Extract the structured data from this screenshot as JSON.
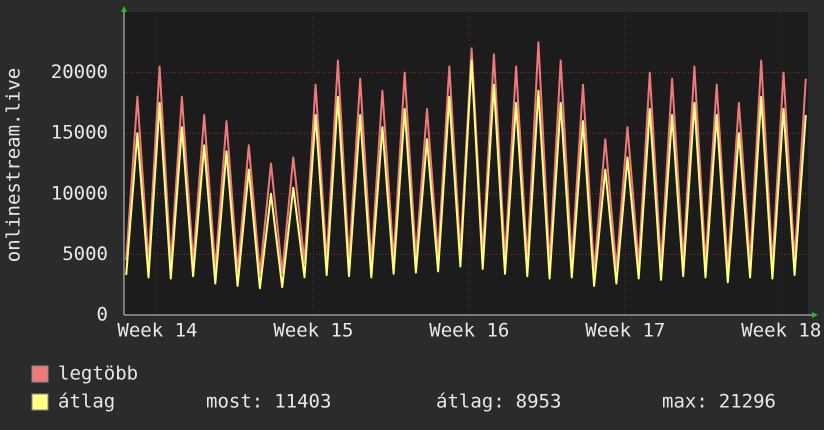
{
  "chart_data": {
    "type": "line",
    "ylabel": "onlinestream.live",
    "x": [
      0.1,
      0.6,
      1.1,
      1.6,
      2.1,
      2.6,
      3.1,
      3.6,
      4.1,
      4.6,
      5.1,
      5.6,
      6.1,
      6.6,
      7.1,
      7.6,
      8.1,
      8.6,
      9.1,
      9.6,
      10.1,
      10.6,
      11.1,
      11.6,
      12.1,
      12.6,
      13.1,
      13.6,
      14.1,
      14.6,
      15.1,
      15.6,
      16.1,
      16.6,
      17.1,
      17.6,
      18.1,
      18.6,
      19.1,
      19.6,
      20.1,
      20.6,
      21.1,
      21.6,
      22.1,
      22.6,
      23.1,
      23.6,
      24.1,
      24.6,
      25.1,
      25.6,
      26.1,
      26.6,
      27.1,
      27.6,
      28.1,
      28.6,
      29.1,
      29.6,
      30.1,
      30.6
    ],
    "series": [
      {
        "name": "legtöbb",
        "color": "#f07878",
        "values": [
          4500,
          18000,
          4300,
          20500,
          4200,
          18000,
          4400,
          16500,
          3800,
          16000,
          3600,
          14000,
          3400,
          12500,
          3500,
          13000,
          4300,
          19000,
          4500,
          21000,
          4400,
          19500,
          4300,
          18500,
          4600,
          20000,
          4700,
          17000,
          4800,
          20500,
          5200,
          22000,
          5000,
          21500,
          4600,
          20500,
          4400,
          22500,
          4200,
          21000,
          4300,
          19000,
          3600,
          14500,
          3800,
          15500,
          4200,
          20000,
          4100,
          19500,
          4400,
          20500,
          4300,
          19000,
          3900,
          17500,
          4300,
          21000,
          4200,
          20000,
          4500,
          19500
        ]
      },
      {
        "name": "átlag",
        "color": "#ffff80",
        "values": [
          3300,
          15000,
          3100,
          17500,
          3000,
          15500,
          3200,
          14000,
          2600,
          13500,
          2400,
          12000,
          2200,
          10000,
          2300,
          10500,
          3100,
          16500,
          3300,
          18000,
          3200,
          16500,
          3100,
          15500,
          3400,
          17000,
          3500,
          14500,
          3600,
          18000,
          4000,
          21000,
          3800,
          19000,
          3400,
          17500,
          3200,
          18500,
          3000,
          17500,
          3100,
          16000,
          2400,
          12000,
          2600,
          13000,
          3000,
          17000,
          2900,
          16500,
          3200,
          17500,
          3100,
          16500,
          2700,
          15000,
          3100,
          18000,
          3000,
          17000,
          3300,
          16500
        ]
      }
    ],
    "xlim": [
      0,
      30.7
    ],
    "xticks": [
      {
        "value": 1.5,
        "label": "Week 14"
      },
      {
        "value": 8.5,
        "label": "Week 15"
      },
      {
        "value": 15.5,
        "label": "Week 16"
      },
      {
        "value": 22.5,
        "label": "Week 17"
      },
      {
        "value": 29.5,
        "label": "Week 18"
      }
    ],
    "ylim": [
      0,
      25000
    ],
    "yticks": [
      0,
      5000,
      10000,
      15000,
      20000
    ],
    "grid": true,
    "stats": [
      {
        "label": "most:",
        "value": 11403
      },
      {
        "label": "átlag:",
        "value": 8953
      },
      {
        "label": "max:",
        "value": 21296
      }
    ]
  }
}
